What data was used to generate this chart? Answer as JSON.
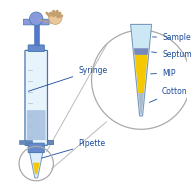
{
  "background_color": "#ffffff",
  "syringe_label": "Syringe",
  "pipette_label": "Pipette",
  "sample_label": "Sample",
  "septum_label": "Septum",
  "mip_label": "MIP",
  "cotton_label": "Cotton",
  "label_color": "#1a4a9a",
  "label_fontsize": 5.5,
  "syringe_body_color": "#e8f4fc",
  "syringe_border_color": "#4477aa",
  "plunger_rod_color": "#5577cc",
  "plunger_head_color": "#8899dd",
  "barrel_cap_color": "#6688cc",
  "grip_color": "#6688bb",
  "barrel_stripe_color": "#aabbdd",
  "tip_clear_color": "#ddeeff",
  "tip_border_color": "#7799bb",
  "yellow_color": "#f5c800",
  "septum_color": "#7788bb",
  "cotton_color": "#aabbcc",
  "circle_color": "#aaaaaa",
  "hand_skin": "#e8c89a",
  "hand_line": "#c4a070",
  "line_color": "#bbbbbb"
}
